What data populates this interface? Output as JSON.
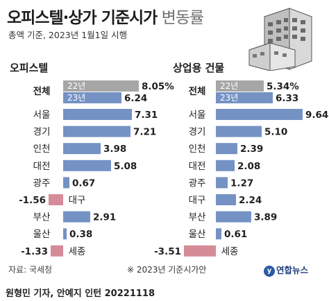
{
  "title": {
    "bold": "오피스텔·상가 기준시가",
    "light": " 변동률"
  },
  "subtitle": "총액 기준, 2023년 1월1일 시행",
  "source": "자료: 국세청",
  "note": "※ 2023년 기준시가안",
  "byline": "원형민 기자, 안예지 인턴  20221118",
  "logo": "연합뉴스",
  "colors": {
    "current": "#7592c4",
    "previous": "#a6a6a6",
    "negative": "#d68b99"
  },
  "chart_data": [
    {
      "type": "bar",
      "title": "오피스텔",
      "total": {
        "label": "전체",
        "prev_label": "22년",
        "prev_value": 8.05,
        "prev_text": "8.05%",
        "curr_label": "23년",
        "curr_value": 6.24,
        "curr_text": "6.24"
      },
      "categories": [
        "서울",
        "경기",
        "인천",
        "대전",
        "광주",
        "대구",
        "부산",
        "울산",
        "세종"
      ],
      "values": [
        7.31,
        7.21,
        3.98,
        5.08,
        0.67,
        -1.56,
        2.91,
        0.38,
        -1.33
      ]
    },
    {
      "type": "bar",
      "title": "상업용 건물",
      "total": {
        "label": "전체",
        "prev_label": "22년",
        "prev_value": 5.34,
        "prev_text": "5.34%",
        "curr_label": "23년",
        "curr_value": 6.33,
        "curr_text": "6.33"
      },
      "categories": [
        "서울",
        "경기",
        "인천",
        "대전",
        "광주",
        "대구",
        "부산",
        "울산",
        "세종"
      ],
      "values": [
        9.64,
        5.1,
        2.39,
        2.08,
        1.27,
        2.24,
        3.89,
        0.61,
        -3.51
      ]
    }
  ]
}
